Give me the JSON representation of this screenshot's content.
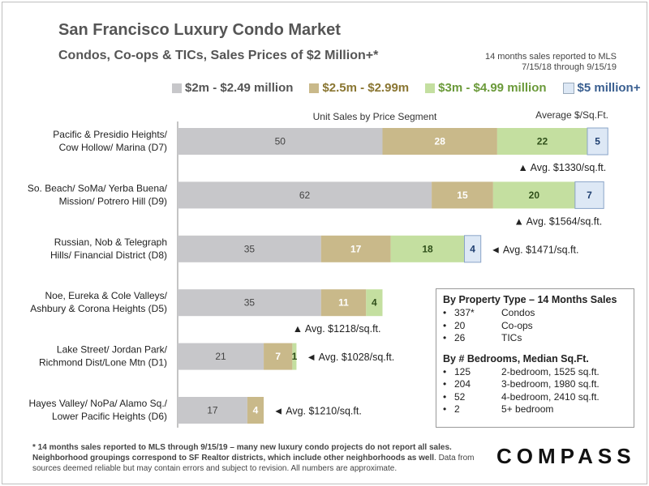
{
  "header": {
    "title": "San Francisco Luxury Condo Market",
    "subtitle": "Condos, Co-ops & TICs, Sales Prices of $2 Million+*",
    "note_line1": "14 months sales reported to MLS",
    "note_line2": "7/15/18 through 9/15/19"
  },
  "legend": [
    {
      "label": "$2m - $2.49 million",
      "color": "#c7c7ca"
    },
    {
      "label": "$2.5m - $2.99m",
      "color": "#c9b98a"
    },
    {
      "label": "$3m - $4.99 million",
      "color": "#c4dfa0"
    },
    {
      "label": "$5 million+",
      "color": "#dde8f5"
    }
  ],
  "chart_data": {
    "type": "bar",
    "orientation": "horizontal",
    "stacked": true,
    "title": "Unit Sales by Price Segment",
    "avg_header": "Average $/Sq.Ft.",
    "categories": [
      [
        "Pacific & Presidio Heights/",
        "Cow Hollow/ Marina (D7)"
      ],
      [
        "So. Beach/ SoMa/ Yerba Buena/",
        "Mission/ Potrero Hill (D9)"
      ],
      [
        "Russian, Nob & Telegraph",
        "Hills/ Financial District (D8)"
      ],
      [
        "Noe, Eureka & Cole Valleys/",
        "Ashbury & Corona Heights (D5)"
      ],
      [
        "Lake Street/ Jordan Park/",
        "Richmond Dist/Lone Mtn (D1)"
      ],
      [
        "Hayes Valley/ NoPa/ Alamo Sq./",
        "Lower Pacific Heights (D6)"
      ]
    ],
    "series": [
      {
        "name": "$2m - $2.49 million",
        "color": "#c7c7ca",
        "values": [
          50,
          62,
          35,
          35,
          21,
          17
        ]
      },
      {
        "name": "$2.5m - $2.99m",
        "color": "#c9b98a",
        "values": [
          28,
          15,
          17,
          11,
          7,
          4
        ]
      },
      {
        "name": "$3m - $4.99 million",
        "color": "#c4dfa0",
        "values": [
          22,
          20,
          18,
          4,
          1,
          0
        ]
      },
      {
        "name": "$5 million+",
        "color": "#dde8f5",
        "values": [
          5,
          7,
          4,
          0,
          0,
          0
        ]
      }
    ],
    "avg_labels": [
      "▲ Avg. $1330/sq.ft.",
      "▲ Avg. $1564/sq.ft.",
      "◄ Avg. $1471/sq.ft.",
      "▲ Avg. $1218/sq.ft.",
      "◄ Avg. $1028/sq.ft.",
      "◄ Avg. $1210/sq.ft."
    ],
    "avg_placement": [
      "below",
      "below",
      "right",
      "below",
      "right",
      "right"
    ]
  },
  "info_box": {
    "title1": "By Property Type – 14 Months Sales",
    "types": [
      {
        "num": "337*",
        "label": "Condos"
      },
      {
        "num": "20",
        "label": "Co-ops"
      },
      {
        "num": "26",
        "label": "TICs"
      }
    ],
    "title2": "By # Bedrooms, Median Sq.Ft.",
    "bedrooms": [
      {
        "num": "125",
        "label": "2-bedroom, 1525 sq.ft."
      },
      {
        "num": "204",
        "label": "3-bedroom, 1980 sq.ft."
      },
      {
        "num": "52",
        "label": "4-bedroom, 2410 sq.ft."
      },
      {
        "num": "2",
        "label": "5+ bedroom"
      }
    ]
  },
  "footnote": {
    "bold": "* 14 months sales reported to MLS through 9/15/19 – many new luxury condo projects do not report all sales. Neighborhood groupings correspond to SF Realtor districts, which include other neighborhoods as well",
    "rest": ". Data from sources deemed reliable but may contain errors and subject to revision. All numbers are approximate."
  },
  "brand": "COMPASS",
  "text_color_dark": "#222222",
  "value_color_light": "#333333"
}
